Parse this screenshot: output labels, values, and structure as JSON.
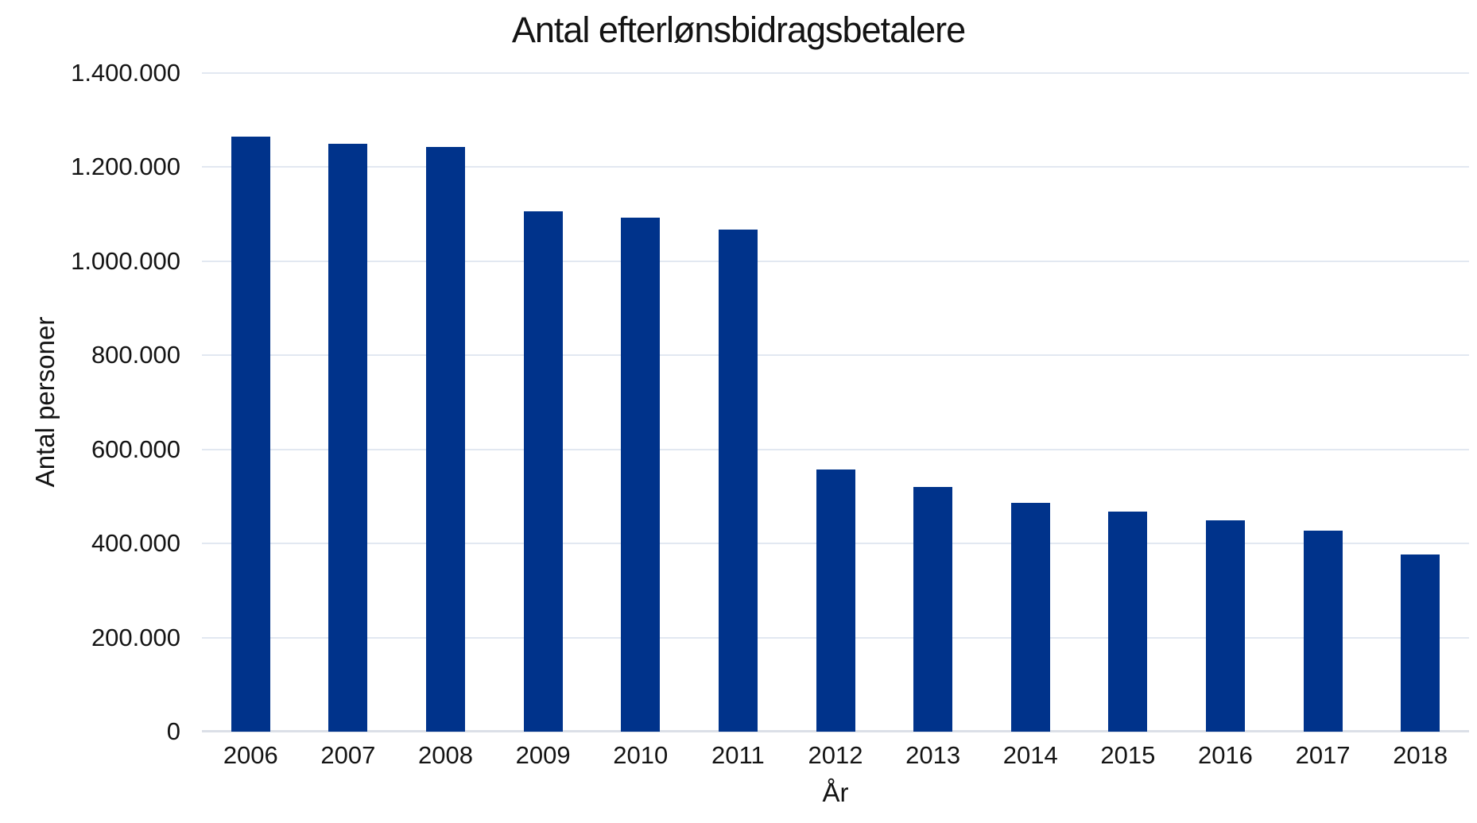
{
  "chart_data": {
    "type": "bar",
    "title": "Antal efterlønsbidragsbetalere",
    "xlabel": "År",
    "ylabel": "Antal personer",
    "categories": [
      "2006",
      "2007",
      "2008",
      "2009",
      "2010",
      "2011",
      "2012",
      "2013",
      "2014",
      "2015",
      "2016",
      "2017",
      "2018"
    ],
    "values": [
      1265000,
      1250000,
      1243000,
      1107000,
      1093000,
      1068000,
      558000,
      520000,
      487000,
      468000,
      450000,
      428000,
      377000
    ],
    "ylim": [
      0,
      1400000
    ],
    "ytick_step": 200000,
    "ytick_labels": [
      "0",
      "200.000",
      "400.000",
      "600.000",
      "800.000",
      "1.000.000",
      "1.200.000",
      "1.400.000"
    ],
    "grid": true,
    "legend": false,
    "colors": {
      "bar": "#00338b",
      "gridline": "#e2e8f1",
      "axis_line": "#dbdfe7",
      "text": "#141414",
      "background": "#ffffff"
    }
  }
}
